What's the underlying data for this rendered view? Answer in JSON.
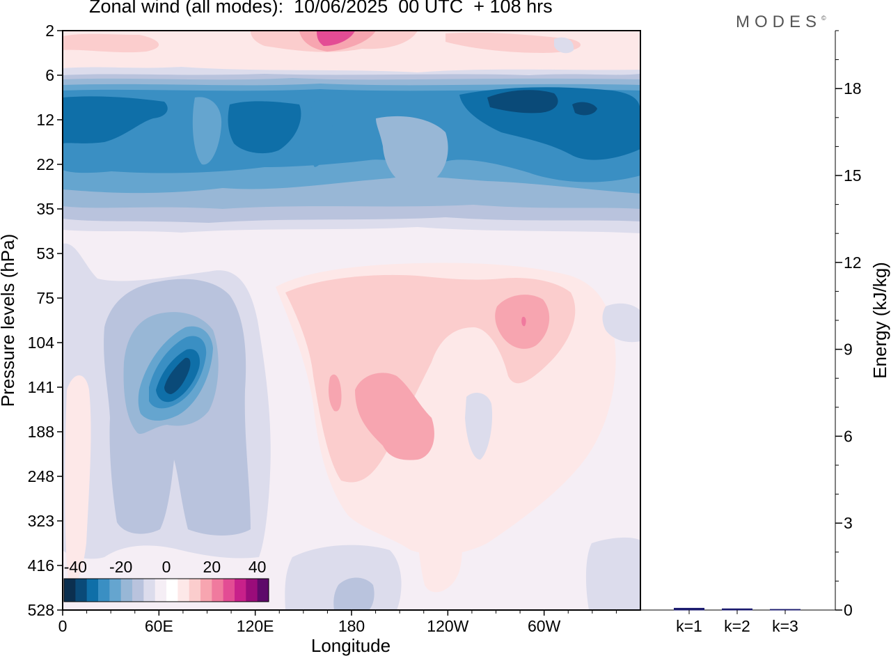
{
  "title": "Zonal wind (all modes):  10/06/2025  00 UTC  + 108 hrs",
  "logo": "MODES",
  "logo_mark": "©",
  "chart_data": [
    {
      "type": "heatmap",
      "title": "Zonal wind (all modes):  10/06/2025  00 UTC  + 108 hrs",
      "xlabel": "Longitude",
      "ylabel": "Pressure levels (hPa)",
      "x_ticks": [
        "0",
        "60E",
        "120E",
        "180",
        "120W",
        "60W"
      ],
      "x_tick_positions_deg": [
        0,
        60,
        120,
        180,
        240,
        300
      ],
      "xlim_deg": [
        0,
        360
      ],
      "y_ticks": [
        "2",
        "6",
        "12",
        "22",
        "35",
        "53",
        "75",
        "104",
        "141",
        "188",
        "248",
        "323",
        "416",
        "528"
      ],
      "y_scale": "model levels (pressure decreasing upward)",
      "colorbar": {
        "ticks": [
          "-40",
          "-20",
          "0",
          "20",
          "40"
        ],
        "range": [
          -45,
          45
        ],
        "step": 5,
        "colors": [
          "#0b2f4f",
          "#0a4a78",
          "#0f6fa8",
          "#3a8fc3",
          "#65a5cf",
          "#98b7d6",
          "#b9c3dd",
          "#dcdcec",
          "#f5eef5",
          "#ffffff",
          "#fde8e8",
          "#fbcdcd",
          "#f7a5b0",
          "#f07a9e",
          "#e34c94",
          "#c8208a",
          "#9a0c7a",
          "#5e0a6a"
        ]
      },
      "features": [
        {
          "name": "easterly jet core",
          "pressure": [
            8,
            20
          ],
          "lon_deg": [
            0,
            360
          ],
          "u_ms": -30
        },
        {
          "name": "westerly upper layer",
          "pressure": [
            2,
            4
          ],
          "lon_deg": [
            0,
            360
          ],
          "u_ms": 15
        },
        {
          "name": "westerly maximum",
          "pressure": [
            2,
            3
          ],
          "lon_deg": [
            160,
            180
          ],
          "u_ms": 35
        },
        {
          "name": "easterly maximum",
          "pressure": [
            10,
            13
          ],
          "lon_deg": [
            265,
            320
          ],
          "u_ms": -40
        },
        {
          "name": "upper tropospheric easterly jet",
          "pressure": [
            104,
            160
          ],
          "lon_deg": [
            50,
            90
          ],
          "u_ms": -35
        },
        {
          "name": "westerly region",
          "pressure": [
            130,
            220
          ],
          "lon_deg": [
            175,
            240
          ],
          "u_ms": 10
        },
        {
          "name": "westerly region",
          "pressure": [
            75,
            110
          ],
          "lon_deg": [
            270,
            300
          ],
          "u_ms": 15
        }
      ]
    },
    {
      "type": "bar",
      "ylabel": "Energy (kJ/kg)",
      "ylim": [
        0,
        20
      ],
      "y_ticks": [
        "0",
        "3",
        "6",
        "9",
        "12",
        "15",
        "18"
      ],
      "categories": [
        "k=1",
        "k=2",
        "k=3"
      ],
      "values": [
        0.05,
        0.03,
        0.01
      ]
    }
  ]
}
